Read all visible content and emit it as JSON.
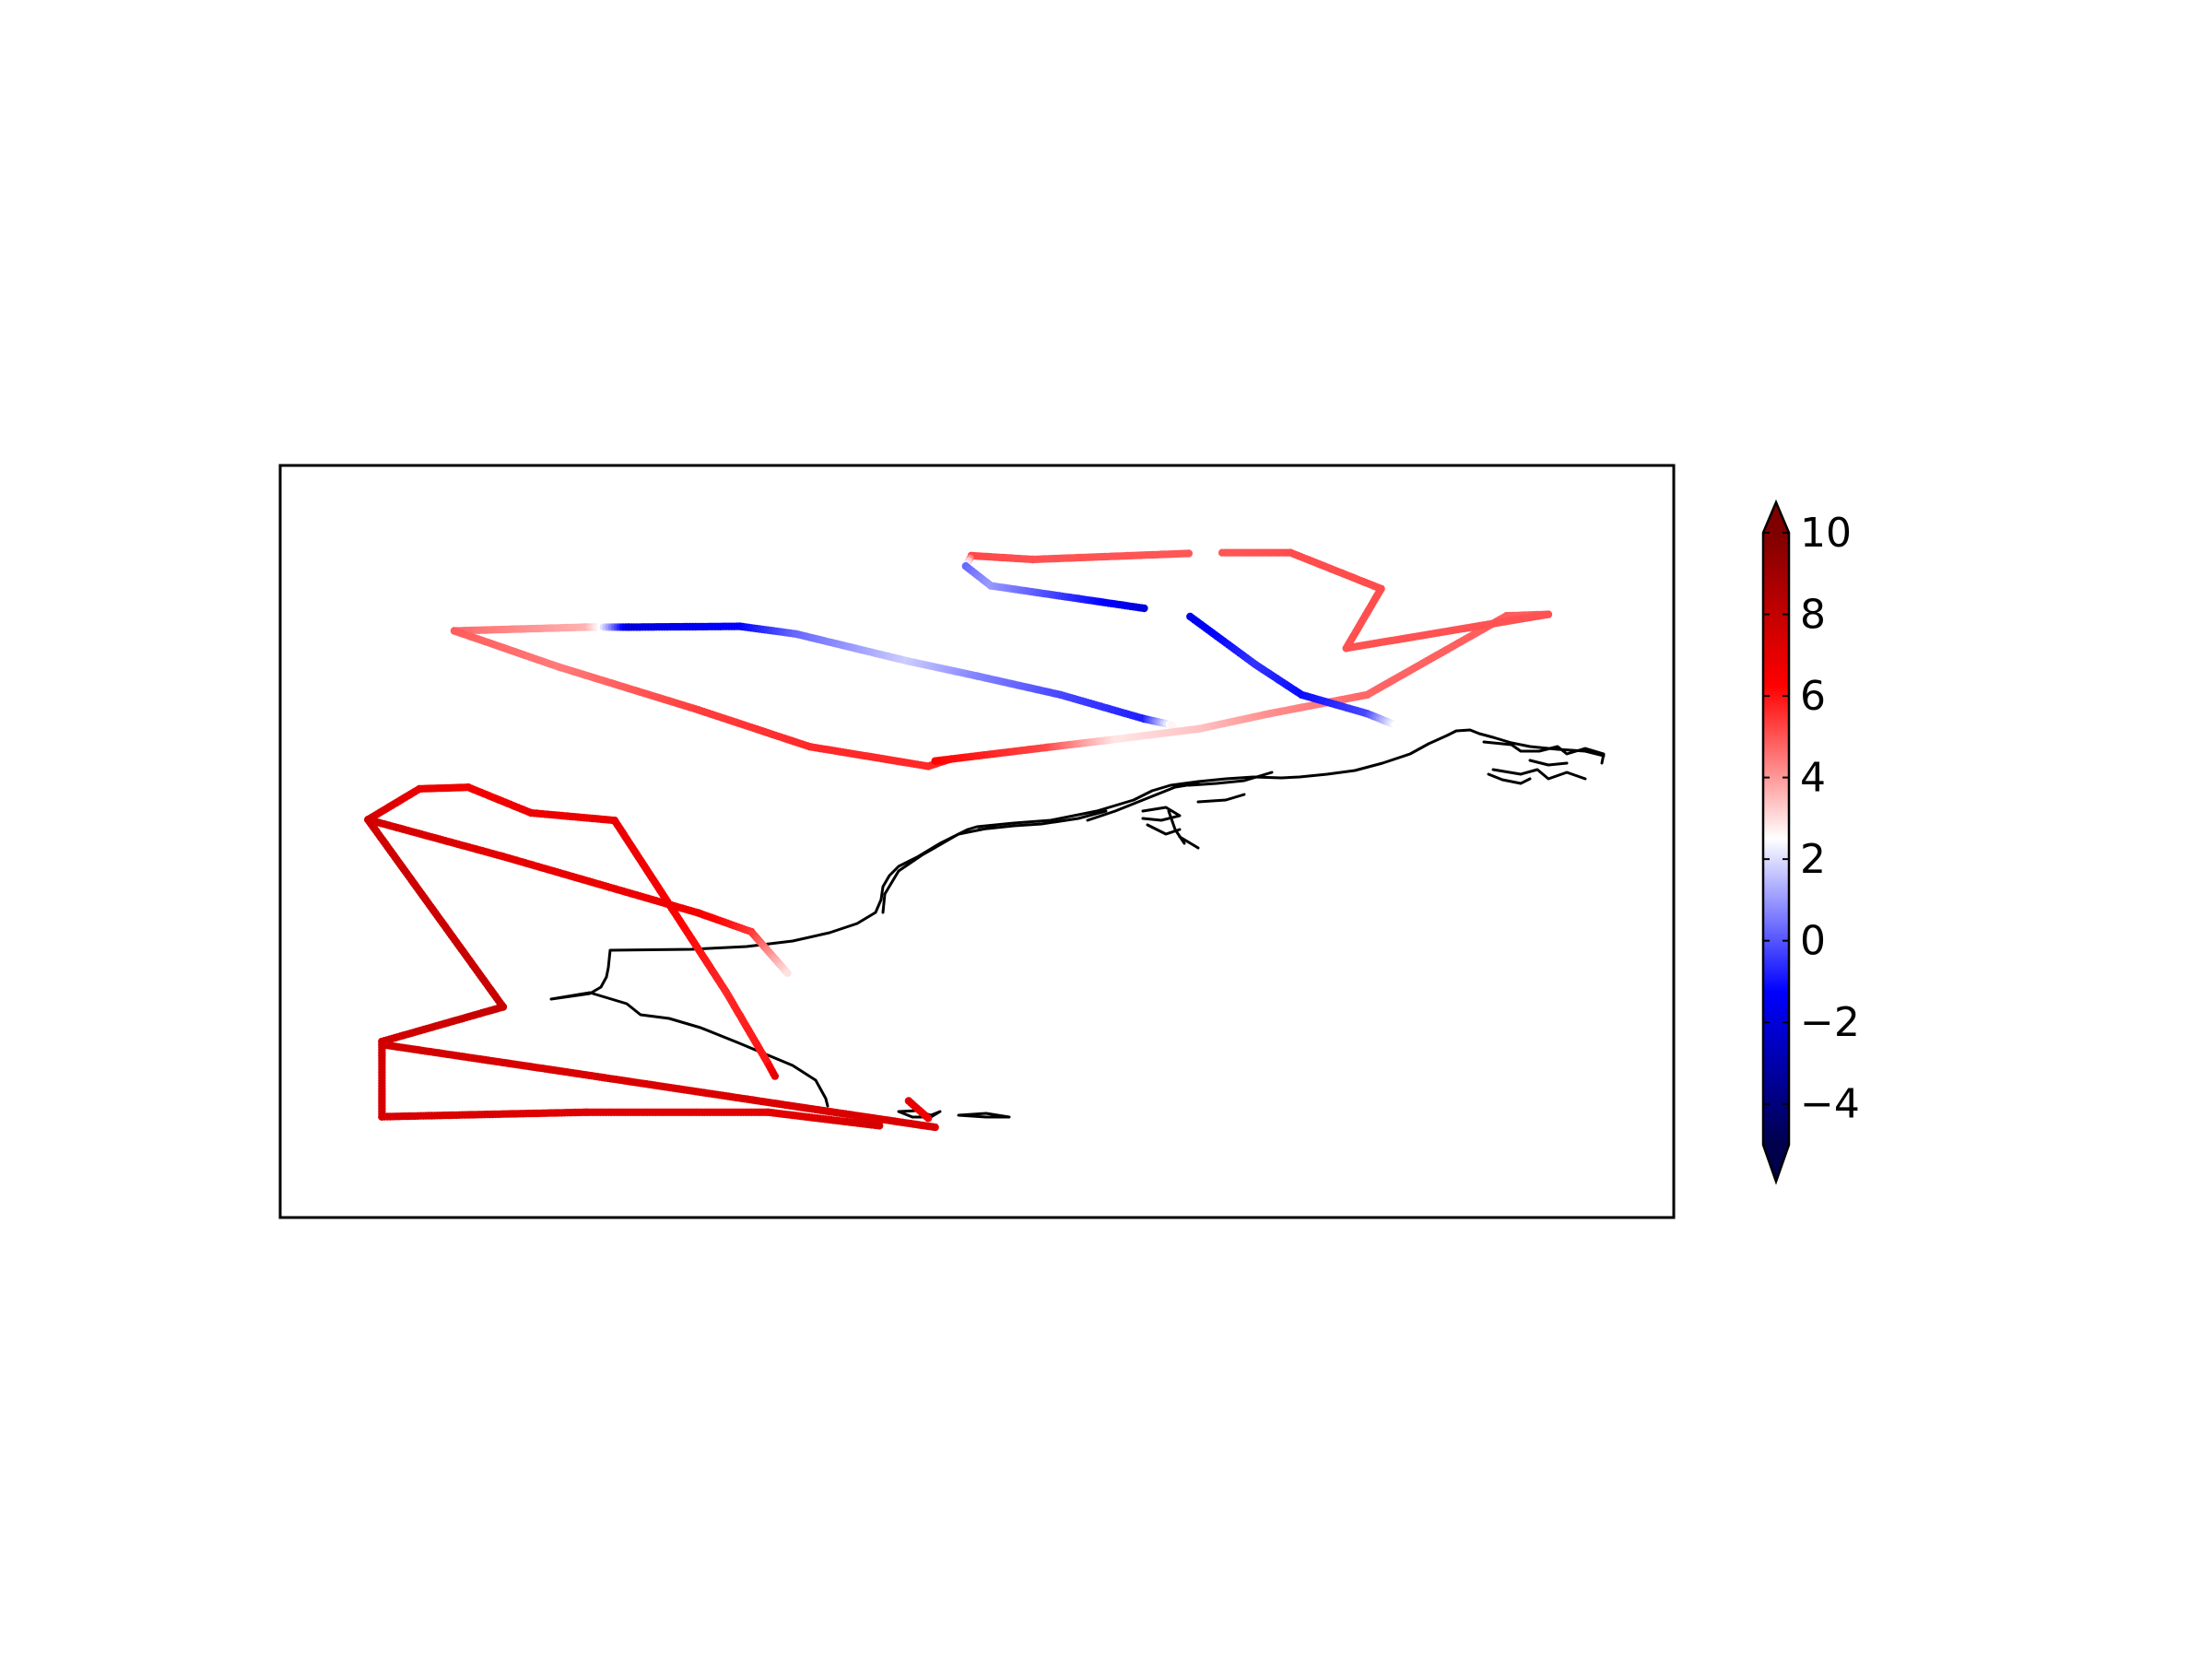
{
  "chart_data": {
    "type": "scatter",
    "title": "",
    "xlabel": "",
    "ylabel": "",
    "grid": false,
    "map_ticks": false,
    "colorbar": {
      "orientation": "vertical",
      "placement": "right",
      "vmin": -5,
      "vmax": 10,
      "extend": "both",
      "ticks": [
        -4,
        -2,
        0,
        2,
        4,
        6,
        8,
        10
      ],
      "tick_labels": [
        "−4",
        "−2",
        "0",
        "2",
        "4",
        "6",
        "8",
        "10"
      ],
      "colormap": "seismic",
      "colors": {
        "low": "#00004c",
        "mid_low": "#0000ff",
        "center": "#ffffff",
        "mid_high": "#ff0000",
        "high": "#7f0000"
      }
    },
    "coastline_color": "#000000",
    "series": [
      {
        "points": [
          {
            "x": 0.125,
            "y": 0.22,
            "c": 3.0
          },
          {
            "x": 0.22,
            "y": 0.215,
            "c": 1.5
          },
          {
            "x": 0.25,
            "y": 0.215,
            "c": -3.0
          },
          {
            "x": 0.33,
            "y": 0.214,
            "c": -2.5
          },
          {
            "x": 0.37,
            "y": 0.224,
            "c": -1.5
          },
          {
            "x": 0.45,
            "y": 0.26,
            "c": -0.5
          },
          {
            "x": 0.5,
            "y": 0.28,
            "c": -1.2
          },
          {
            "x": 0.56,
            "y": 0.305,
            "c": -1.8
          },
          {
            "x": 0.62,
            "y": 0.337,
            "c": -2.2
          },
          {
            "x": 0.64,
            "y": 0.345,
            "c": 0.2
          }
        ]
      },
      {
        "points": [
          {
            "x": 0.125,
            "y": 0.22,
            "c": 3.2
          },
          {
            "x": 0.2,
            "y": 0.268,
            "c": 2.6
          },
          {
            "x": 0.3,
            "y": 0.325,
            "c": 3.8
          },
          {
            "x": 0.38,
            "y": 0.374,
            "c": 4.2
          },
          {
            "x": 0.465,
            "y": 0.4,
            "c": 4.2
          },
          {
            "x": 0.48,
            "y": 0.391,
            "c": 4.5
          }
        ]
      },
      {
        "points": [
          {
            "x": 0.47,
            "y": 0.393,
            "c": 5.0
          },
          {
            "x": 0.55,
            "y": 0.375,
            "c": 3.6
          },
          {
            "x": 0.6,
            "y": 0.364,
            "c": 0.5
          },
          {
            "x": 0.66,
            "y": 0.35,
            "c": 1.2
          },
          {
            "x": 0.71,
            "y": 0.33,
            "c": 2.2
          },
          {
            "x": 0.78,
            "y": 0.305,
            "c": 3.0
          },
          {
            "x": 0.88,
            "y": 0.2,
            "c": 3.2
          },
          {
            "x": 0.91,
            "y": 0.198,
            "c": 3.2
          }
        ]
      },
      {
        "points": [
          {
            "x": 0.91,
            "y": 0.198,
            "c": 3.4
          },
          {
            "x": 0.765,
            "y": 0.243,
            "c": 3.4
          },
          {
            "x": 0.79,
            "y": 0.164,
            "c": 3.5
          },
          {
            "x": 0.725,
            "y": 0.116,
            "c": 3.5
          },
          {
            "x": 0.676,
            "y": 0.116,
            "c": 3.3
          }
        ]
      },
      {
        "points": [
          {
            "x": 0.652,
            "y": 0.117,
            "c": 3.3
          },
          {
            "x": 0.54,
            "y": 0.125,
            "c": 3.4
          },
          {
            "x": 0.496,
            "y": 0.12,
            "c": 3.6
          },
          {
            "x": 0.492,
            "y": 0.134,
            "c": -1.5
          },
          {
            "x": 0.51,
            "y": 0.16,
            "c": -1.0
          },
          {
            "x": 0.62,
            "y": 0.19,
            "c": -3.0
          }
        ]
      },
      {
        "points": [
          {
            "x": 0.653,
            "y": 0.201,
            "c": -2.8
          },
          {
            "x": 0.7,
            "y": 0.265,
            "c": -2.0
          },
          {
            "x": 0.733,
            "y": 0.305,
            "c": -2.4
          },
          {
            "x": 0.78,
            "y": 0.33,
            "c": -1.8
          },
          {
            "x": 0.8,
            "y": 0.345,
            "c": 0.0
          }
        ]
      },
      {
        "points": [
          {
            "x": 0.063,
            "y": 0.471,
            "c": 6.6
          },
          {
            "x": 0.1,
            "y": 0.43,
            "c": 5.8
          },
          {
            "x": 0.135,
            "y": 0.428,
            "c": 5.5
          },
          {
            "x": 0.18,
            "y": 0.462,
            "c": 5.6
          },
          {
            "x": 0.24,
            "y": 0.472,
            "c": 5.8
          },
          {
            "x": 0.28,
            "y": 0.586,
            "c": 5.2
          },
          {
            "x": 0.32,
            "y": 0.7,
            "c": 4.2
          },
          {
            "x": 0.35,
            "y": 0.795,
            "c": 4.6
          },
          {
            "x": 0.355,
            "y": 0.812,
            "c": 6.0
          }
        ]
      },
      {
        "points": [
          {
            "x": 0.063,
            "y": 0.471,
            "c": 6.8
          },
          {
            "x": 0.16,
            "y": 0.52,
            "c": 6.0
          },
          {
            "x": 0.3,
            "y": 0.595,
            "c": 5.5
          },
          {
            "x": 0.338,
            "y": 0.62,
            "c": 4.0
          },
          {
            "x": 0.364,
            "y": 0.675,
            "c": 0.6
          }
        ]
      },
      {
        "points": [
          {
            "x": 0.063,
            "y": 0.471,
            "c": 6.8
          },
          {
            "x": 0.16,
            "y": 0.72,
            "c": 7.2
          },
          {
            "x": 0.073,
            "y": 0.766,
            "c": 6.8
          },
          {
            "x": 0.073,
            "y": 0.866,
            "c": 6.6
          },
          {
            "x": 0.22,
            "y": 0.86,
            "c": 6.2
          },
          {
            "x": 0.35,
            "y": 0.86,
            "c": 6.0
          },
          {
            "x": 0.43,
            "y": 0.878,
            "c": 6.6
          }
        ]
      },
      {
        "points": [
          {
            "x": 0.073,
            "y": 0.77,
            "c": 6.8
          },
          {
            "x": 0.2,
            "y": 0.805,
            "c": 6.4
          },
          {
            "x": 0.39,
            "y": 0.858,
            "c": 6.4
          },
          {
            "x": 0.47,
            "y": 0.88,
            "c": 6.4
          }
        ]
      },
      {
        "points": [
          {
            "x": 0.451,
            "y": 0.845,
            "c": 6.0
          },
          {
            "x": 0.465,
            "y": 0.868,
            "c": 5.5
          }
        ]
      }
    ]
  }
}
